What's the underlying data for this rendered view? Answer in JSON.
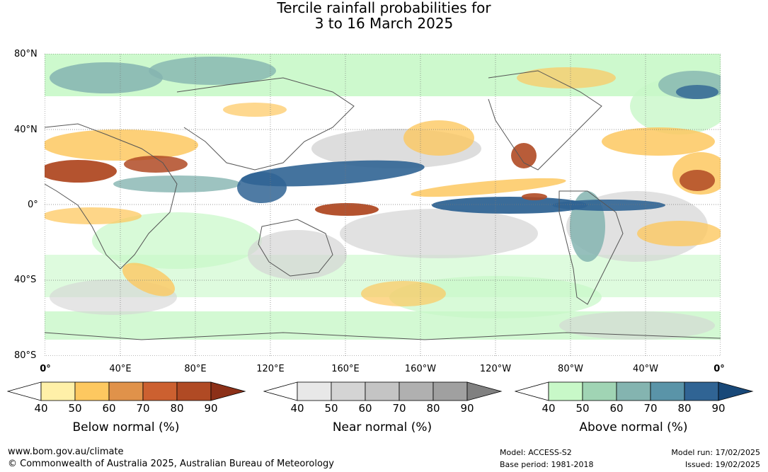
{
  "title": {
    "line1": "Tercile rainfall probabilities for",
    "line2": "3 to 16 March 2025"
  },
  "map": {
    "lat_labels": [
      "80°N",
      "40°N",
      "0°",
      "40°S",
      "80°S"
    ],
    "lon_labels": [
      "0°",
      "40°E",
      "80°E",
      "120°E",
      "160°E",
      "160°W",
      "120°W",
      "80°W",
      "40°W",
      "0°"
    ]
  },
  "legends": [
    {
      "title": "Below normal (%)",
      "ticks": [
        "40",
        "50",
        "60",
        "70",
        "80",
        "90"
      ],
      "colors": [
        "#fff0a8",
        "#fdc860",
        "#e0924a",
        "#cc6030",
        "#b04a24",
        "#8c3018"
      ]
    },
    {
      "title": "Near normal (%)",
      "ticks": [
        "40",
        "50",
        "60",
        "70",
        "80",
        "90"
      ],
      "colors": [
        "#e8e8e8",
        "#d4d4d4",
        "#c4c4c4",
        "#b0b0b0",
        "#a0a0a0",
        "#808080"
      ]
    },
    {
      "title": "Above normal (%)",
      "ticks": [
        "40",
        "50",
        "60",
        "70",
        "80",
        "90"
      ],
      "colors": [
        "#c8f8c8",
        "#a0d4b4",
        "#84b4b0",
        "#5a94a8",
        "#306494",
        "#184878"
      ]
    }
  ],
  "footer": {
    "url": "www.bom.gov.au/climate",
    "copyright": "© Commonwealth of Australia 2025, Australian Bureau of Meteorology",
    "model": "Model: ACCESS-S2",
    "base_period": "Base period: 1981-2018",
    "model_run": "Model run: 17/02/2025",
    "issued": "Issued: 19/02/2025"
  }
}
